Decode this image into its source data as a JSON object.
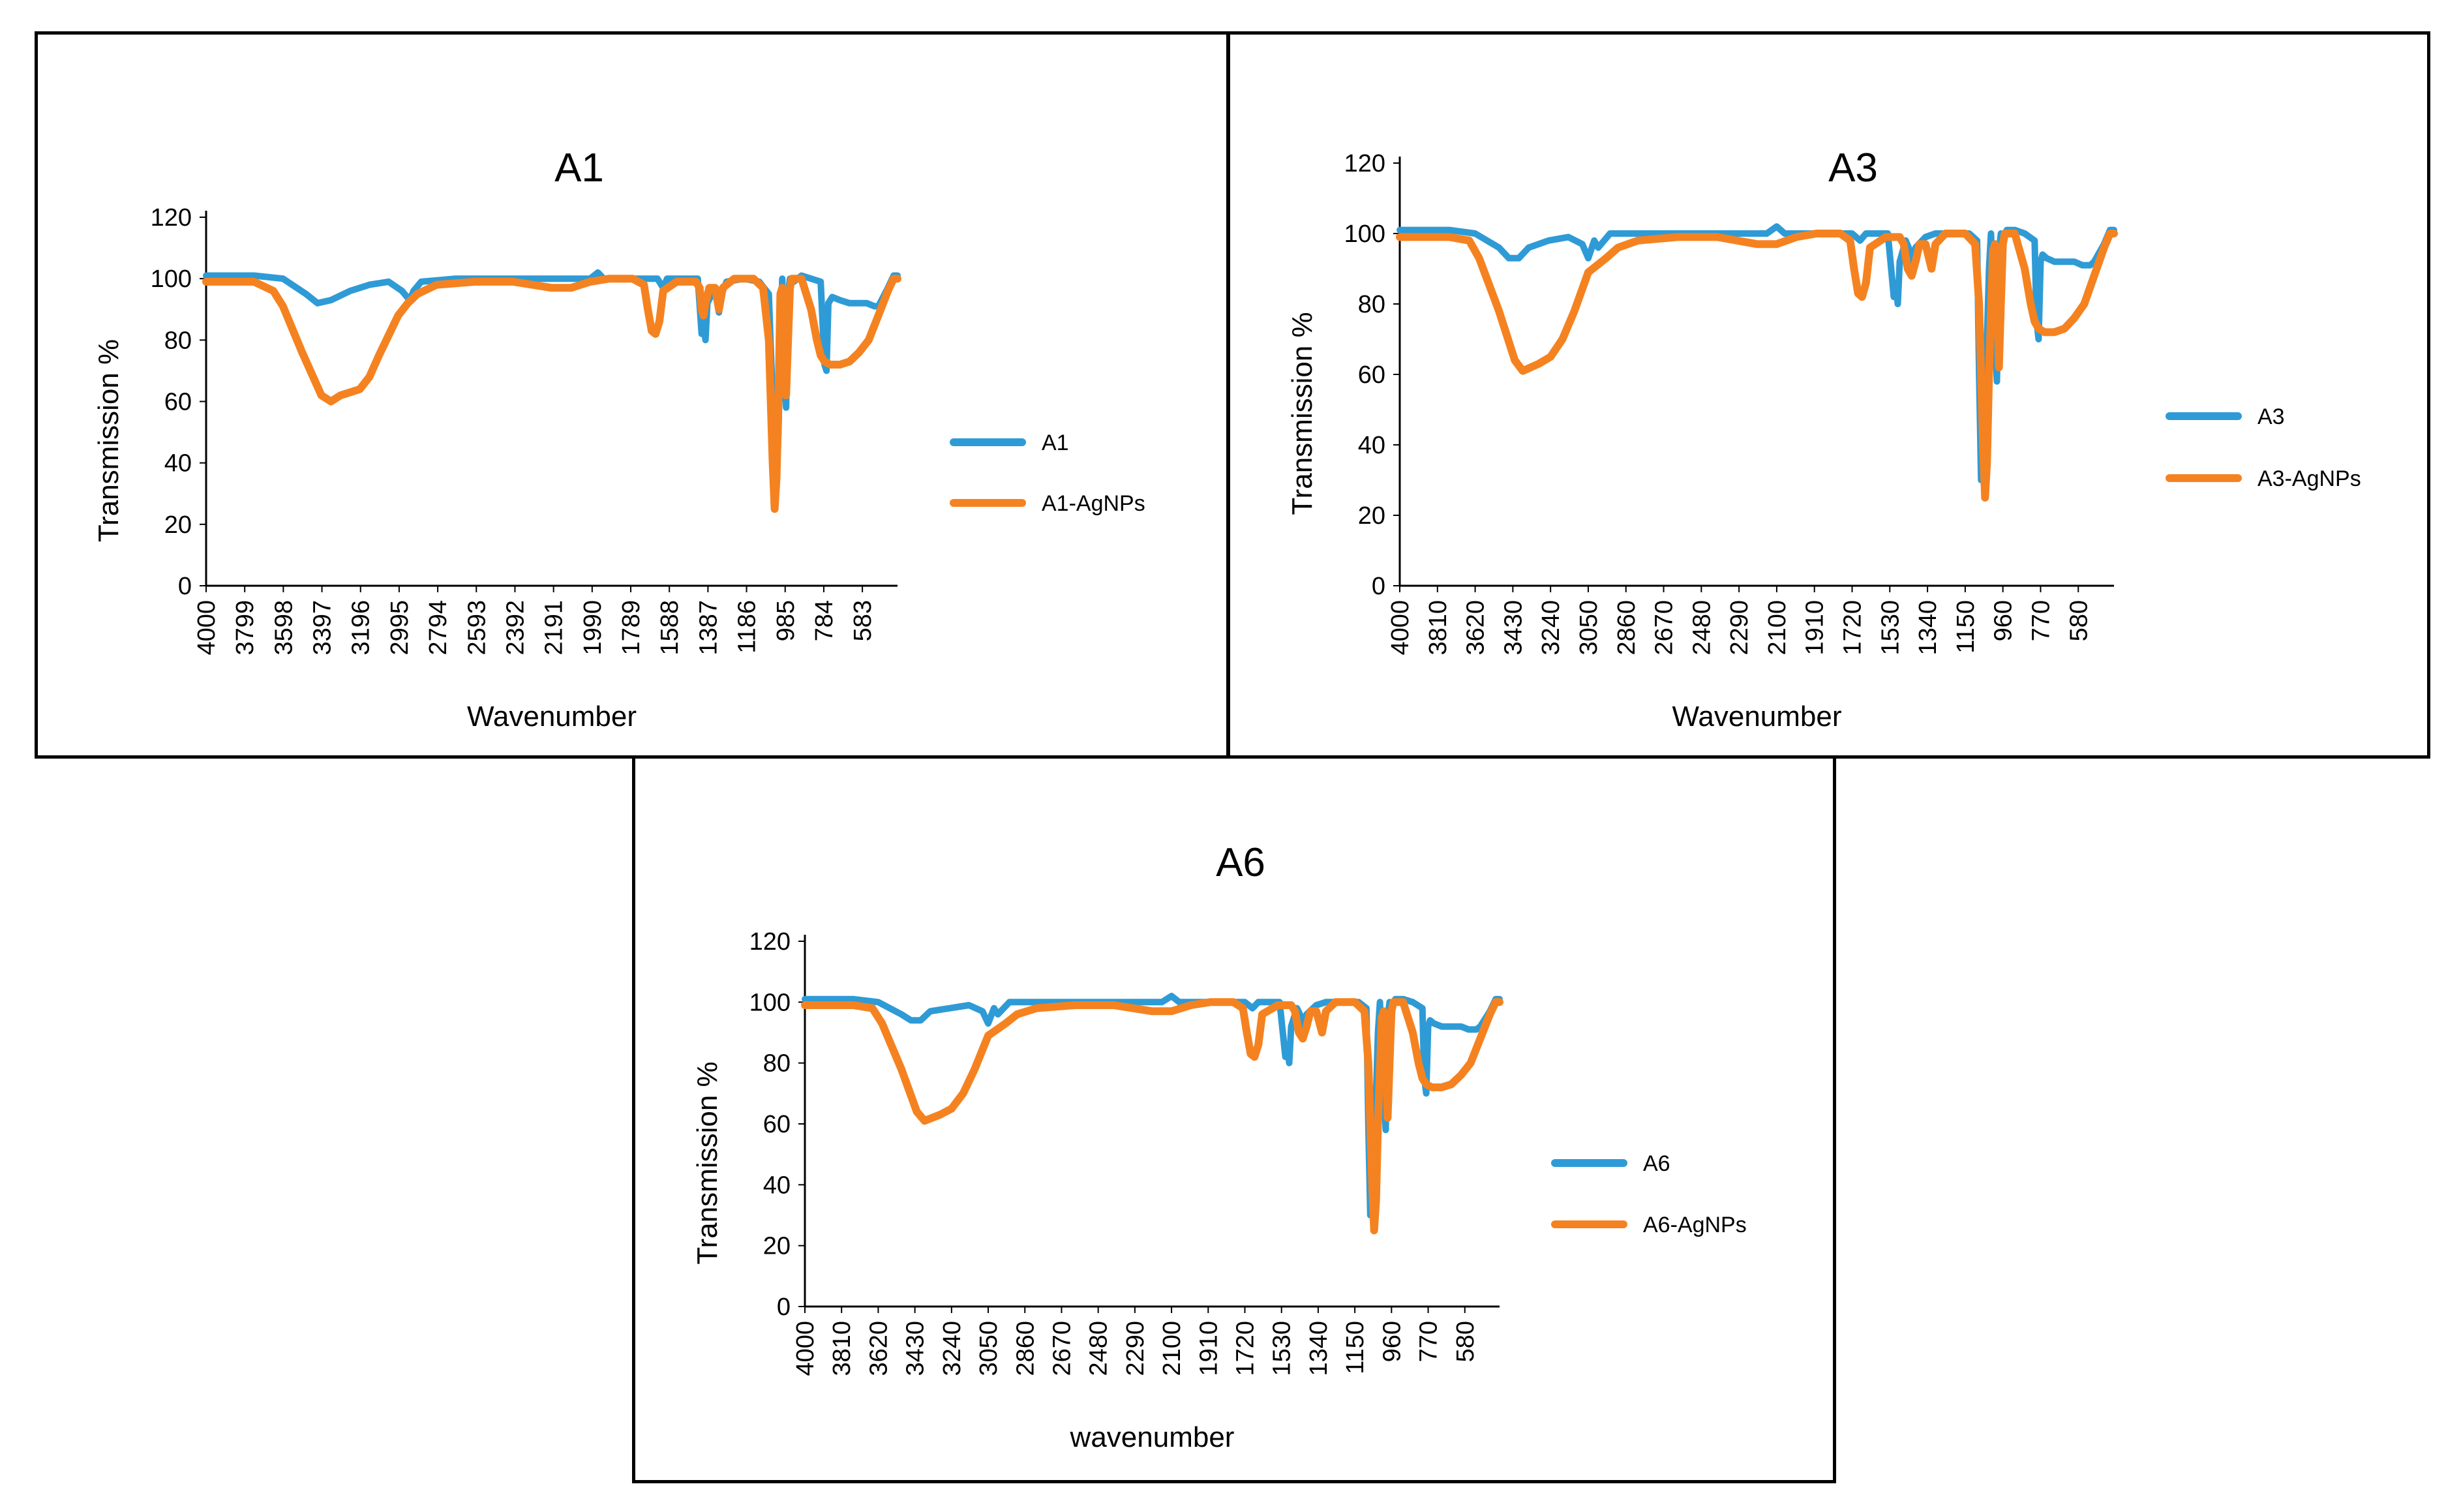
{
  "colors": {
    "series_1": "#2E9BD6",
    "series_2": "#F58220",
    "axis": "#000000"
  },
  "chart_data": [
    {
      "type": "line",
      "title": "A1",
      "xlabel": "Wavenumber",
      "ylabel": "Transmission %",
      "xlim": [
        4000,
        400
      ],
      "ylim": [
        0,
        120
      ],
      "yticks": [
        "0",
        "20",
        "40",
        "60",
        "80",
        "100",
        "120"
      ],
      "xticks": [
        "4000",
        "3799",
        "3598",
        "3397",
        "3196",
        "2995",
        "2794",
        "2593",
        "2392",
        "2191",
        "1990",
        "1789",
        "1588",
        "1387",
        "1186",
        "985",
        "784",
        "583"
      ],
      "legend_position": "right",
      "series": [
        {
          "name": "A1",
          "x": [
            4000,
            3750,
            3600,
            3480,
            3420,
            3350,
            3250,
            3150,
            3050,
            2980,
            2940,
            2920,
            2880,
            2700,
            2400,
            2000,
            1960,
            1930,
            1750,
            1650,
            1620,
            1600,
            1550,
            1440,
            1420,
            1410,
            1400,
            1390,
            1350,
            1330,
            1310,
            1290,
            1200,
            1120,
            1070,
            1050,
            1040,
            1030,
            1020,
            1000,
            990,
            980,
            970,
            960,
            940,
            900,
            850,
            800,
            780,
            770,
            760,
            740,
            700,
            650,
            600,
            560,
            520,
            500,
            450,
            420,
            400
          ],
          "y": [
            101,
            101,
            100,
            95,
            92,
            93,
            96,
            98,
            99,
            96,
            93,
            96,
            99,
            100,
            100,
            100,
            102,
            100,
            100,
            100,
            97,
            100,
            100,
            100,
            82,
            86,
            80,
            92,
            97,
            89,
            96,
            99,
            100,
            99,
            95,
            60,
            30,
            32,
            50,
            100,
            70,
            58,
            95,
            100,
            99,
            101,
            100,
            99,
            72,
            70,
            92,
            94,
            93,
            92,
            92,
            92,
            91,
            91,
            97,
            101,
            101
          ]
        },
        {
          "name": "A1-AgNPs",
          "x": [
            4000,
            3750,
            3650,
            3600,
            3500,
            3400,
            3350,
            3300,
            3200,
            3150,
            3100,
            3000,
            2950,
            2900,
            2800,
            2600,
            2400,
            2200,
            2100,
            2000,
            1900,
            1780,
            1720,
            1700,
            1680,
            1660,
            1640,
            1620,
            1550,
            1450,
            1430,
            1420,
            1410,
            1400,
            1380,
            1350,
            1330,
            1310,
            1250,
            1150,
            1100,
            1070,
            1050,
            1040,
            1030,
            1020,
            1010,
            1000,
            990,
            980,
            970,
            960,
            950,
            900,
            850,
            820,
            800,
            780,
            750,
            700,
            650,
            600,
            550,
            500,
            450,
            420,
            400
          ],
          "y": [
            99,
            99,
            96,
            91,
            76,
            62,
            60,
            62,
            64,
            68,
            75,
            88,
            92,
            95,
            98,
            99,
            99,
            97,
            97,
            99,
            100,
            100,
            98,
            90,
            83,
            82,
            86,
            96,
            99,
            99,
            97,
            90,
            88,
            92,
            97,
            97,
            90,
            97,
            100,
            100,
            97,
            80,
            40,
            25,
            35,
            60,
            95,
            97,
            85,
            62,
            80,
            97,
            100,
            100,
            90,
            80,
            75,
            73,
            72,
            72,
            73,
            76,
            80,
            88,
            96,
            100,
            100
          ]
        }
      ]
    },
    {
      "type": "line",
      "title": "A3",
      "xlabel": "Wavenumber",
      "ylabel": "Transmission %",
      "xlim": [
        4000,
        400
      ],
      "ylim": [
        0,
        120
      ],
      "yticks": [
        "0",
        "20",
        "40",
        "60",
        "80",
        "100",
        "120"
      ],
      "xticks": [
        "4000",
        "3810",
        "3620",
        "3430",
        "3240",
        "3050",
        "2860",
        "2670",
        "2480",
        "2290",
        "2100",
        "1910",
        "1720",
        "1530",
        "1340",
        "1150",
        "960",
        "770",
        "580"
      ],
      "legend_position": "right",
      "series": [
        {
          "name": "A3",
          "x": [
            4000,
            3750,
            3620,
            3500,
            3450,
            3400,
            3350,
            3250,
            3150,
            3080,
            3050,
            3020,
            3000,
            2970,
            2940,
            2900,
            2700,
            2400,
            2150,
            2100,
            2060,
            1800,
            1720,
            1680,
            1650,
            1600,
            1540,
            1510,
            1500,
            1490,
            1480,
            1450,
            1420,
            1410,
            1400,
            1350,
            1300,
            1200,
            1130,
            1090,
            1080,
            1070,
            1060,
            1050,
            1040,
            1030,
            1020,
            1000,
            990,
            980,
            970,
            960,
            940,
            900,
            850,
            800,
            790,
            780,
            770,
            760,
            740,
            700,
            650,
            600,
            560,
            520,
            500,
            470,
            450,
            420,
            400
          ],
          "y": [
            101,
            101,
            100,
            96,
            93,
            93,
            96,
            98,
            99,
            97,
            93,
            98,
            96,
            98,
            100,
            100,
            100,
            100,
            100,
            102,
            100,
            100,
            100,
            98,
            100,
            100,
            100,
            82,
            86,
            80,
            92,
            98,
            94,
            90,
            96,
            99,
            100,
            100,
            100,
            98,
            60,
            30,
            32,
            50,
            70,
            90,
            100,
            70,
            58,
            95,
            100,
            99,
            101,
            101,
            100,
            98,
            75,
            70,
            92,
            94,
            93,
            92,
            92,
            92,
            91,
            91,
            92,
            95,
            97,
            101,
            101
          ]
        },
        {
          "name": "A3-AgNPs",
          "x": [
            4000,
            3750,
            3650,
            3600,
            3500,
            3420,
            3380,
            3300,
            3240,
            3180,
            3120,
            3050,
            2960,
            2900,
            2800,
            2600,
            2400,
            2200,
            2100,
            2000,
            1900,
            1780,
            1730,
            1710,
            1690,
            1670,
            1650,
            1630,
            1550,
            1480,
            1460,
            1440,
            1420,
            1400,
            1380,
            1350,
            1320,
            1300,
            1250,
            1150,
            1100,
            1080,
            1060,
            1050,
            1040,
            1030,
            1010,
            1000,
            990,
            980,
            970,
            960,
            950,
            900,
            850,
            820,
            800,
            780,
            750,
            700,
            650,
            600,
            550,
            500,
            450,
            420,
            400
          ],
          "y": [
            99,
            99,
            98,
            93,
            78,
            64,
            61,
            63,
            65,
            70,
            78,
            89,
            93,
            96,
            98,
            99,
            99,
            97,
            97,
            99,
            100,
            100,
            98,
            90,
            83,
            82,
            86,
            96,
            99,
            99,
            97,
            90,
            88,
            92,
            97,
            97,
            90,
            97,
            100,
            100,
            97,
            80,
            40,
            25,
            35,
            60,
            95,
            97,
            85,
            62,
            80,
            97,
            100,
            100,
            90,
            80,
            75,
            73,
            72,
            72,
            73,
            76,
            80,
            88,
            96,
            100,
            100
          ]
        }
      ]
    },
    {
      "type": "line",
      "title": "A6",
      "xlabel": "wavenumber",
      "ylabel": "Transmission %",
      "xlim": [
        4000,
        400
      ],
      "ylim": [
        0,
        120
      ],
      "yticks": [
        "0",
        "20",
        "40",
        "60",
        "80",
        "100",
        "120"
      ],
      "xticks": [
        "4000",
        "3810",
        "3620",
        "3430",
        "3240",
        "3050",
        "2860",
        "2670",
        "2480",
        "2290",
        "2100",
        "1910",
        "1720",
        "1530",
        "1340",
        "1150",
        "960",
        "770",
        "580"
      ],
      "legend_position": "right",
      "series": [
        {
          "name": "A6",
          "x": [
            4000,
            3750,
            3620,
            3500,
            3450,
            3400,
            3350,
            3250,
            3150,
            3080,
            3050,
            3020,
            3000,
            2970,
            2940,
            2900,
            2700,
            2400,
            2150,
            2100,
            2060,
            1800,
            1720,
            1680,
            1650,
            1600,
            1540,
            1510,
            1500,
            1490,
            1480,
            1450,
            1420,
            1410,
            1400,
            1350,
            1300,
            1200,
            1130,
            1090,
            1080,
            1070,
            1060,
            1050,
            1040,
            1030,
            1020,
            1000,
            990,
            980,
            970,
            960,
            940,
            900,
            850,
            800,
            790,
            780,
            770,
            760,
            740,
            700,
            650,
            600,
            560,
            520,
            500,
            470,
            450,
            420,
            400
          ],
          "y": [
            101,
            101,
            100,
            96,
            94,
            94,
            97,
            98,
            99,
            97,
            93,
            98,
            96,
            98,
            100,
            100,
            100,
            100,
            100,
            102,
            100,
            100,
            100,
            98,
            100,
            100,
            100,
            82,
            86,
            80,
            92,
            98,
            94,
            90,
            96,
            99,
            100,
            100,
            100,
            98,
            60,
            30,
            32,
            50,
            70,
            90,
            100,
            70,
            58,
            95,
            100,
            99,
            101,
            101,
            100,
            98,
            75,
            70,
            92,
            94,
            93,
            92,
            92,
            92,
            91,
            91,
            92,
            95,
            97,
            101,
            101
          ]
        },
        {
          "name": "A6-AgNPs",
          "x": [
            4000,
            3750,
            3650,
            3600,
            3500,
            3420,
            3380,
            3300,
            3240,
            3180,
            3120,
            3050,
            2960,
            2900,
            2800,
            2600,
            2400,
            2200,
            2100,
            2000,
            1900,
            1780,
            1730,
            1710,
            1690,
            1670,
            1650,
            1630,
            1550,
            1480,
            1460,
            1440,
            1420,
            1400,
            1380,
            1350,
            1320,
            1300,
            1250,
            1150,
            1100,
            1080,
            1060,
            1050,
            1040,
            1030,
            1010,
            1000,
            990,
            980,
            970,
            960,
            950,
            900,
            850,
            820,
            800,
            780,
            750,
            700,
            650,
            600,
            550,
            500,
            450,
            420,
            400
          ],
          "y": [
            99,
            99,
            98,
            93,
            78,
            64,
            61,
            63,
            65,
            70,
            78,
            89,
            93,
            96,
            98,
            99,
            99,
            97,
            97,
            99,
            100,
            100,
            98,
            90,
            83,
            82,
            86,
            96,
            99,
            99,
            97,
            90,
            88,
            92,
            97,
            97,
            90,
            97,
            100,
            100,
            97,
            80,
            40,
            25,
            35,
            60,
            95,
            97,
            85,
            62,
            80,
            97,
            100,
            100,
            90,
            80,
            75,
            73,
            72,
            72,
            73,
            76,
            80,
            88,
            96,
            100,
            100
          ]
        }
      ]
    }
  ]
}
